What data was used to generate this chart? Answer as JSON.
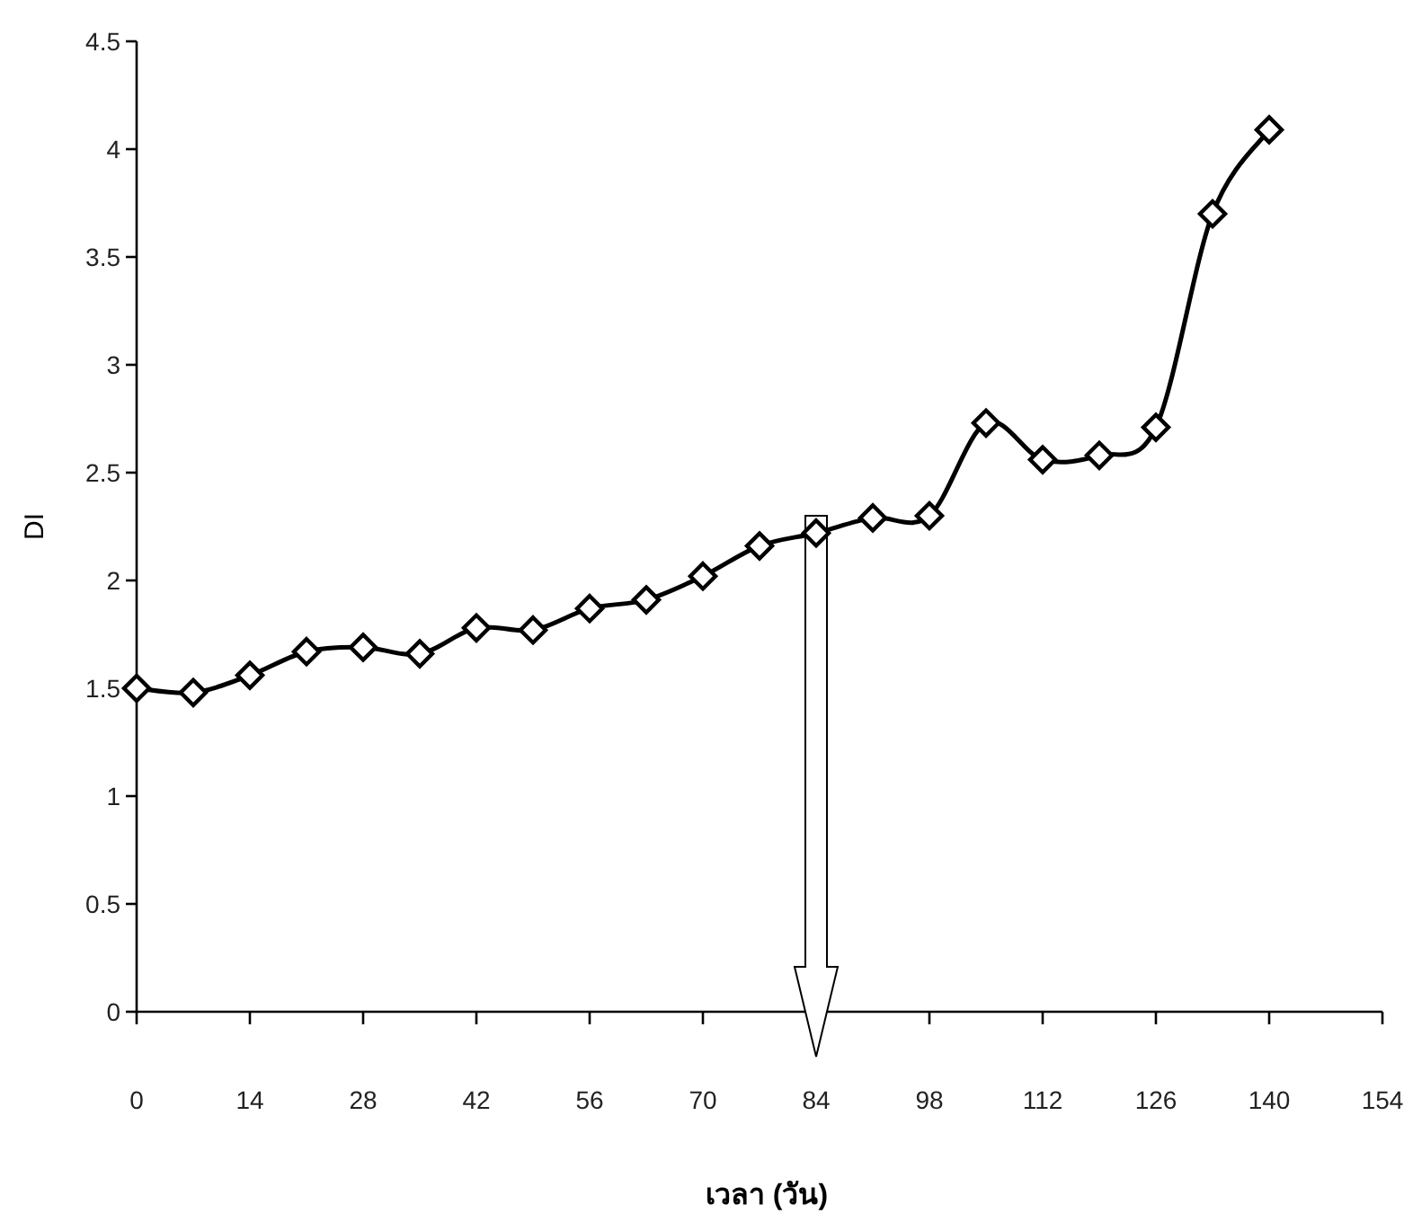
{
  "chart_data": {
    "type": "line",
    "xlabel": "เวลา (วัน)",
    "ylabel": "DI",
    "x": [
      0,
      7,
      14,
      21,
      28,
      35,
      42,
      49,
      56,
      63,
      70,
      77,
      84,
      91,
      98,
      105,
      112,
      119,
      126,
      133,
      140
    ],
    "series": [
      {
        "color": "#000000",
        "values": [
          1.5,
          1.48,
          1.56,
          1.67,
          1.69,
          1.66,
          1.78,
          1.77,
          1.87,
          1.91,
          2.02,
          2.16,
          2.22,
          2.29,
          2.3,
          2.73,
          2.56,
          2.58,
          2.71,
          3.7,
          4.09
        ]
      }
    ],
    "marker": "diamond",
    "line_style": "solid",
    "xlim": [
      0,
      154
    ],
    "xticks": [
      0,
      14,
      28,
      42,
      56,
      70,
      84,
      98,
      112,
      126,
      140,
      154
    ],
    "ylim": [
      0,
      4.5
    ],
    "yticks": [
      0,
      0.5,
      1,
      1.5,
      2,
      2.5,
      3,
      3.5,
      4,
      4.5
    ]
  }
}
